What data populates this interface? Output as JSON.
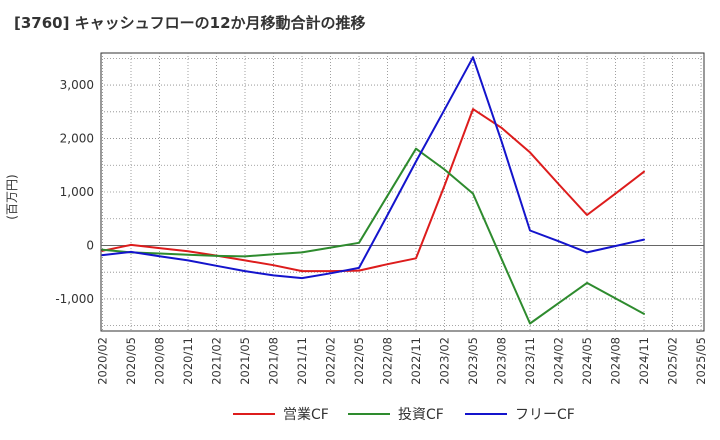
{
  "chart_data": {
    "type": "line",
    "title": "[3760]  キャッシュフローの12か月移動合計の推移",
    "ylabel": "(百万円)",
    "xlabel": "",
    "ylim": [
      -1600,
      3600
    ],
    "yticks": [
      -1000,
      0,
      1000,
      2000,
      3000
    ],
    "ytick_labels": [
      "-1,000",
      "0",
      "1,000",
      "2,000",
      "3,000"
    ],
    "categories": [
      "2020/02",
      "2020/05",
      "2020/08",
      "2020/11",
      "2021/02",
      "2021/05",
      "2021/08",
      "2021/11",
      "2022/02",
      "2022/05",
      "2022/08",
      "2022/11",
      "2023/02",
      "2023/05",
      "2023/08",
      "2023/11",
      "2024/02",
      "2024/05",
      "2024/08",
      "2024/11",
      "2025/02",
      "2025/05"
    ],
    "grid": true,
    "legend_position": "bottom",
    "series": [
      {
        "name": "営業CF",
        "color": "#dd1c1c",
        "values": [
          -100,
          10,
          -50,
          -110,
          -190,
          -280,
          -370,
          -480,
          -480,
          -470,
          -350,
          -240,
          1120,
          2550,
          2200,
          1740,
          1150,
          570,
          970,
          1380,
          null,
          null
        ]
      },
      {
        "name": "投資CF",
        "color": "#2e8b2e",
        "values": [
          -80,
          -130,
          -150,
          -175,
          -195,
          -205,
          -165,
          -130,
          -40,
          50,
          930,
          1810,
          1420,
          970,
          -250,
          -1460,
          -1080,
          -700,
          -990,
          -1280,
          null,
          null
        ]
      },
      {
        "name": "フリーCF",
        "color": "#1414cc",
        "values": [
          -180,
          -120,
          -200,
          -280,
          -380,
          -480,
          -560,
          -610,
          -520,
          -420,
          570,
          1570,
          2540,
          3520,
          1950,
          280,
          80,
          -130,
          -10,
          110,
          null,
          null
        ]
      }
    ]
  }
}
